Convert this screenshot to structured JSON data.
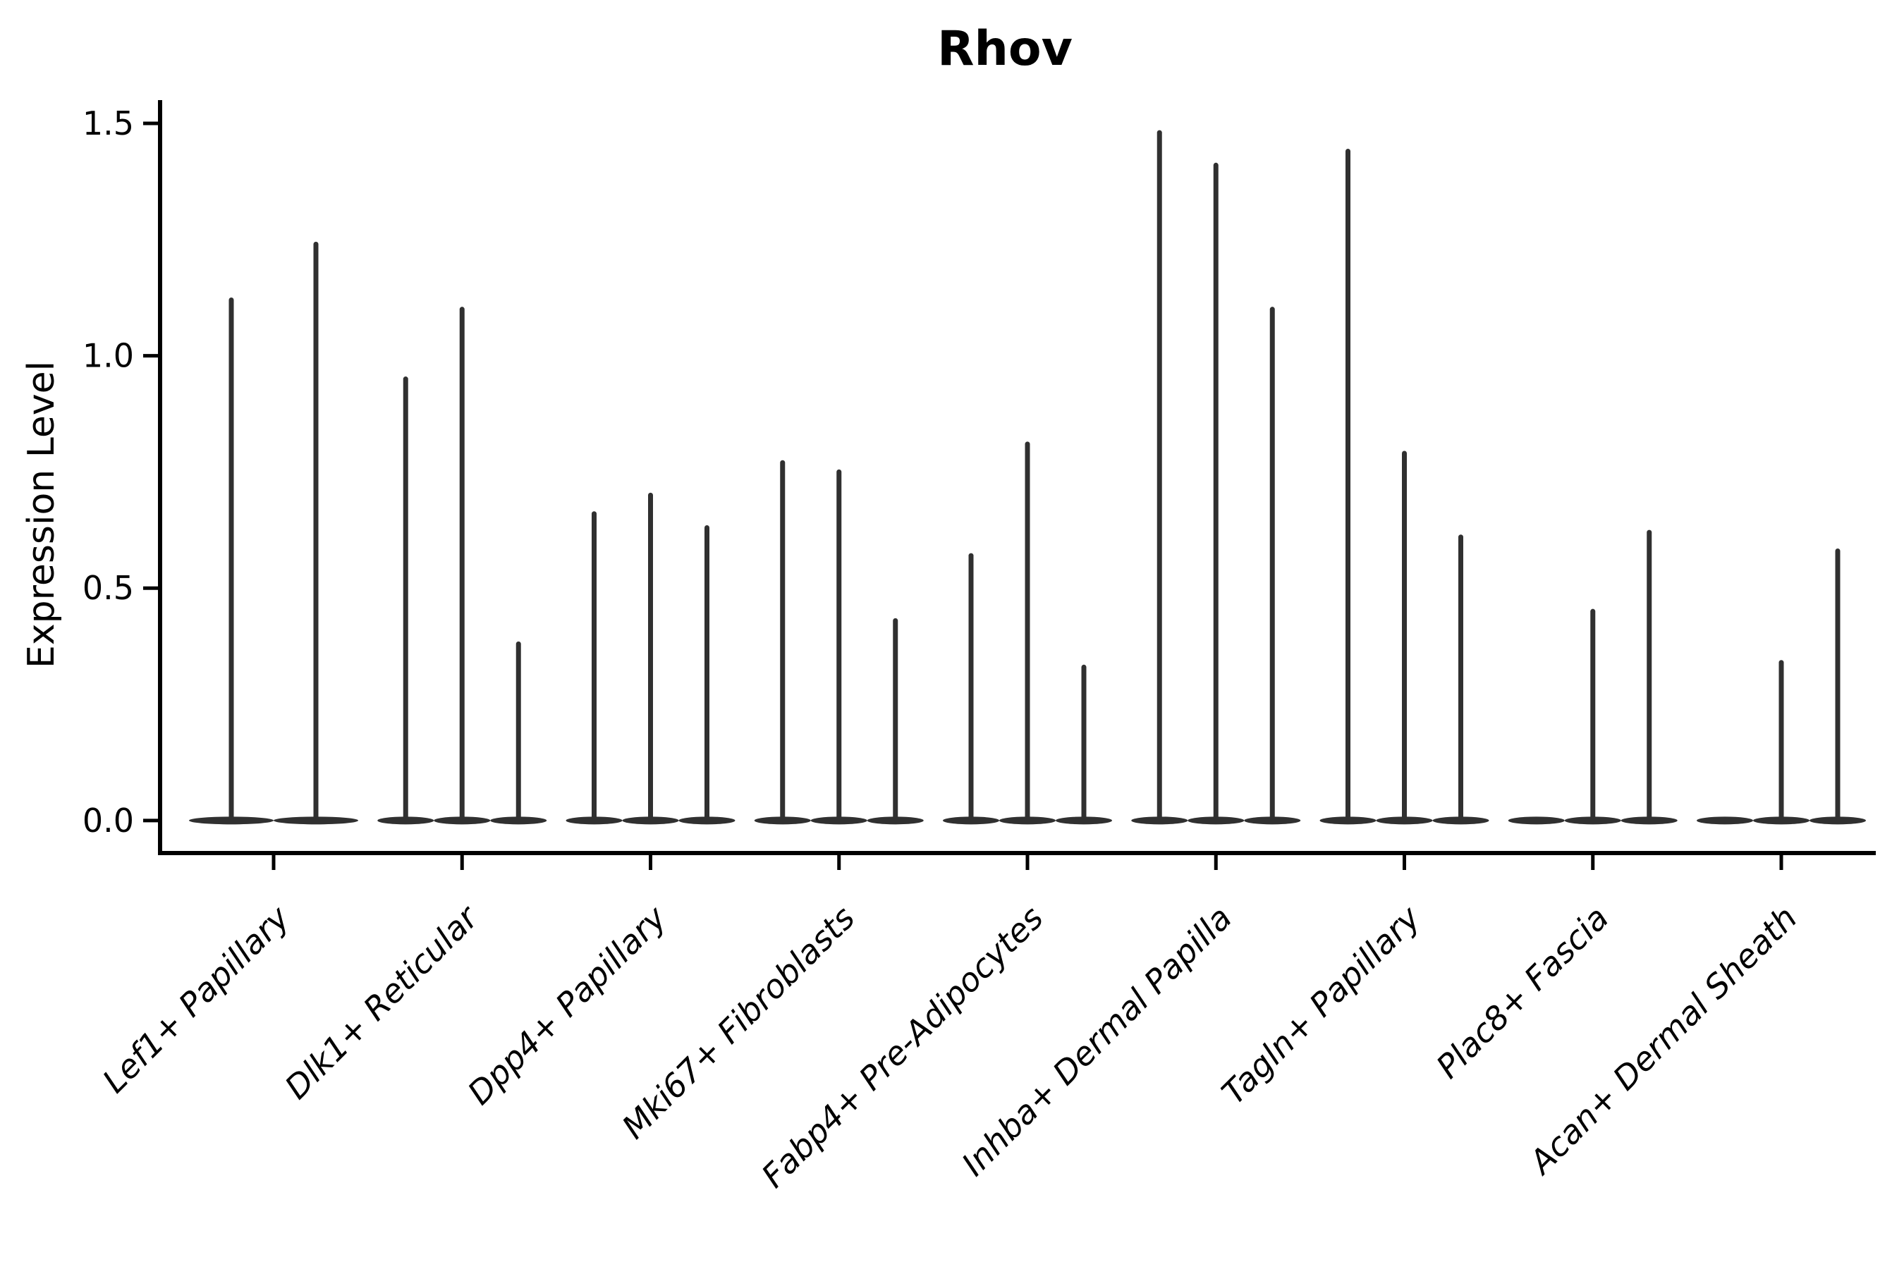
{
  "figure": {
    "title": "Rhov"
  },
  "chart_data": {
    "type": "violin",
    "title": "Rhov",
    "xlabel": "",
    "ylabel": "Expression Level",
    "ytick_labels": [
      "0.0",
      "0.5",
      "1.0",
      "1.5"
    ],
    "ylim": [
      -0.07,
      1.55
    ],
    "grid": false,
    "legend": "none",
    "categories": [
      "Lef1+ Papillary",
      "Dlk1+ Reticular",
      "Dpp4+ Papillary",
      "Mki67+ Fibroblasts",
      "Fabp4+ Pre-Adipocytes",
      "Inhba+ Dermal Papilla",
      "Tagln+ Papillary",
      "Plac8+ Fascia",
      "Acan+ Dermal Sheath"
    ],
    "groups": [
      {
        "label": "Lef1+ Papillary",
        "violin_max_values": [
          1.12,
          1.24
        ]
      },
      {
        "label": "Dlk1+ Reticular",
        "violin_max_values": [
          0.95,
          1.1,
          0.38
        ]
      },
      {
        "label": "Dpp4+ Papillary",
        "violin_max_values": [
          0.66,
          0.7,
          0.63
        ]
      },
      {
        "label": "Mki67+ Fibroblasts",
        "violin_max_values": [
          0.77,
          0.75,
          0.43
        ]
      },
      {
        "label": "Fabp4+ Pre-Adipocytes",
        "violin_max_values": [
          0.57,
          0.81,
          0.33
        ]
      },
      {
        "label": "Inhba+ Dermal Papilla",
        "violin_max_values": [
          1.48,
          1.41,
          1.1
        ]
      },
      {
        "label": "Tagln+ Papillary",
        "violin_max_values": [
          1.44,
          0.79,
          0.61
        ]
      },
      {
        "label": "Plac8+ Fascia",
        "violin_max_values": [
          0.0,
          0.45,
          0.62
        ]
      },
      {
        "label": "Acan+ Dermal Sheath",
        "violin_max_values": [
          0.0,
          0.34,
          0.58
        ]
      }
    ],
    "violin_description": "each violin is a near-zero-width density spike rising from a flat base at expression 0 to its max value",
    "colors": {
      "violin": "#303030",
      "axis": "#000000",
      "background": "#ffffff"
    }
  }
}
